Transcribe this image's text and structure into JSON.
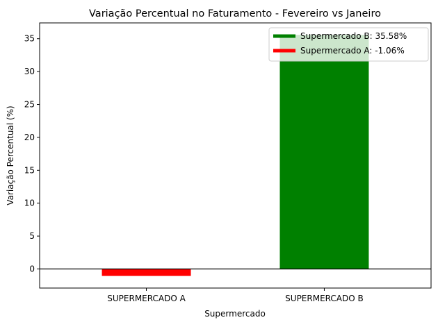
{
  "chart_data": {
    "type": "bar",
    "title": "Variação Percentual no Faturamento - Fevereiro vs Janeiro",
    "xlabel": "Supermercado",
    "ylabel": "Variação Percentual (%)",
    "categories": [
      "SUPERMERCADO A",
      "SUPERMERCADO B"
    ],
    "values": [
      -1.06,
      35.58
    ],
    "bar_colors": [
      "#ff0000",
      "#008000"
    ],
    "ylim": [
      -2.9,
      37.4
    ],
    "yticks": [
      0,
      5,
      10,
      15,
      20,
      25,
      30,
      35
    ],
    "grid": false,
    "zero_line": true,
    "legend": {
      "placement": "upper right",
      "entries": [
        {
          "label": "Supermercado B: 35.58%",
          "color": "#008000"
        },
        {
          "label": "Supermercado A: -1.06%",
          "color": "#ff0000"
        }
      ]
    }
  }
}
